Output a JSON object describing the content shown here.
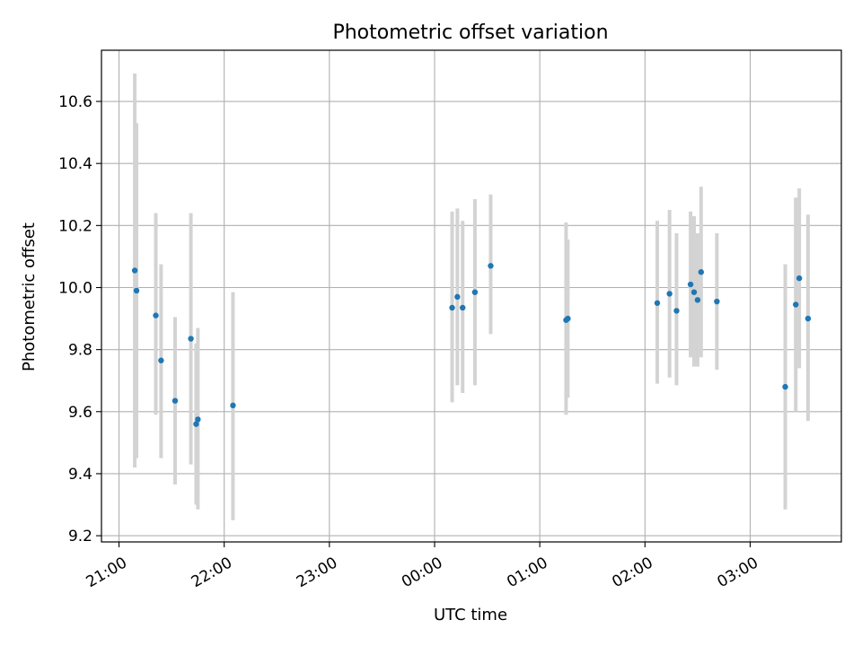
{
  "chart_data": {
    "type": "scatter",
    "title": "Photometric offset variation",
    "xlabel": "UTC time",
    "ylabel": "Photometric offset",
    "x_ticks": [
      "21:00",
      "22:00",
      "23:00",
      "00:00",
      "01:00",
      "02:00",
      "03:00"
    ],
    "y_ticks": [
      "9.2",
      "9.4",
      "9.6",
      "9.8",
      "10.0",
      "10.2",
      "10.4",
      "10.6"
    ],
    "xlim": [
      "20:50",
      "03:52"
    ],
    "ylim": [
      9.18,
      10.765
    ],
    "grid": true,
    "colors": {
      "points": "#1f77b4",
      "error_bars": "#d3d3d3",
      "grid": "#b0b0b0"
    },
    "series": [
      {
        "points": [
          {
            "x": "21:09",
            "y": 10.055,
            "ylow": 9.42,
            "yhigh": 10.69
          },
          {
            "x": "21:10",
            "y": 9.99,
            "ylow": 9.45,
            "yhigh": 10.53
          },
          {
            "x": "21:21",
            "y": 9.91,
            "ylow": 9.59,
            "yhigh": 10.24
          },
          {
            "x": "21:24",
            "y": 9.765,
            "ylow": 9.45,
            "yhigh": 10.075
          },
          {
            "x": "21:32",
            "y": 9.635,
            "ylow": 9.365,
            "yhigh": 9.905
          },
          {
            "x": "21:41",
            "y": 9.835,
            "ylow": 9.43,
            "yhigh": 10.24
          },
          {
            "x": "21:45",
            "y": 9.575,
            "ylow": 9.285,
            "yhigh": 9.87
          },
          {
            "x": "21:44",
            "y": 9.56,
            "ylow": 9.3,
            "yhigh": 9.82
          },
          {
            "x": "22:05",
            "y": 9.62,
            "ylow": 9.25,
            "yhigh": 9.985
          },
          {
            "x": "00:10",
            "y": 9.935,
            "ylow": 9.63,
            "yhigh": 10.245
          },
          {
            "x": "00:13",
            "y": 9.97,
            "ylow": 9.685,
            "yhigh": 10.255
          },
          {
            "x": "00:16",
            "y": 9.935,
            "ylow": 9.66,
            "yhigh": 10.215
          },
          {
            "x": "00:23",
            "y": 9.985,
            "ylow": 9.685,
            "yhigh": 10.285
          },
          {
            "x": "00:32",
            "y": 10.07,
            "ylow": 9.85,
            "yhigh": 10.3
          },
          {
            "x": "01:15",
            "y": 9.895,
            "ylow": 9.59,
            "yhigh": 10.21
          },
          {
            "x": "01:16",
            "y": 9.9,
            "ylow": 9.645,
            "yhigh": 10.155
          },
          {
            "x": "02:07",
            "y": 9.95,
            "ylow": 9.69,
            "yhigh": 10.215
          },
          {
            "x": "02:14",
            "y": 9.98,
            "ylow": 9.71,
            "yhigh": 10.25
          },
          {
            "x": "02:18",
            "y": 9.925,
            "ylow": 9.685,
            "yhigh": 10.175
          },
          {
            "x": "02:26",
            "y": 10.01,
            "ylow": 9.775,
            "yhigh": 10.245
          },
          {
            "x": "02:28",
            "y": 9.985,
            "ylow": 9.745,
            "yhigh": 10.23
          },
          {
            "x": "02:30",
            "y": 9.96,
            "ylow": 9.745,
            "yhigh": 10.175
          },
          {
            "x": "02:32",
            "y": 10.05,
            "ylow": 9.775,
            "yhigh": 10.325
          },
          {
            "x": "02:41",
            "y": 9.955,
            "ylow": 9.735,
            "yhigh": 10.175
          },
          {
            "x": "03:20",
            "y": 9.68,
            "ylow": 9.285,
            "yhigh": 10.075
          },
          {
            "x": "03:26",
            "y": 9.945,
            "ylow": 9.6,
            "yhigh": 10.29
          },
          {
            "x": "03:28",
            "y": 10.03,
            "ylow": 9.74,
            "yhigh": 10.32
          },
          {
            "x": "03:33",
            "y": 9.9,
            "ylow": 9.57,
            "yhigh": 10.235
          }
        ]
      }
    ]
  }
}
